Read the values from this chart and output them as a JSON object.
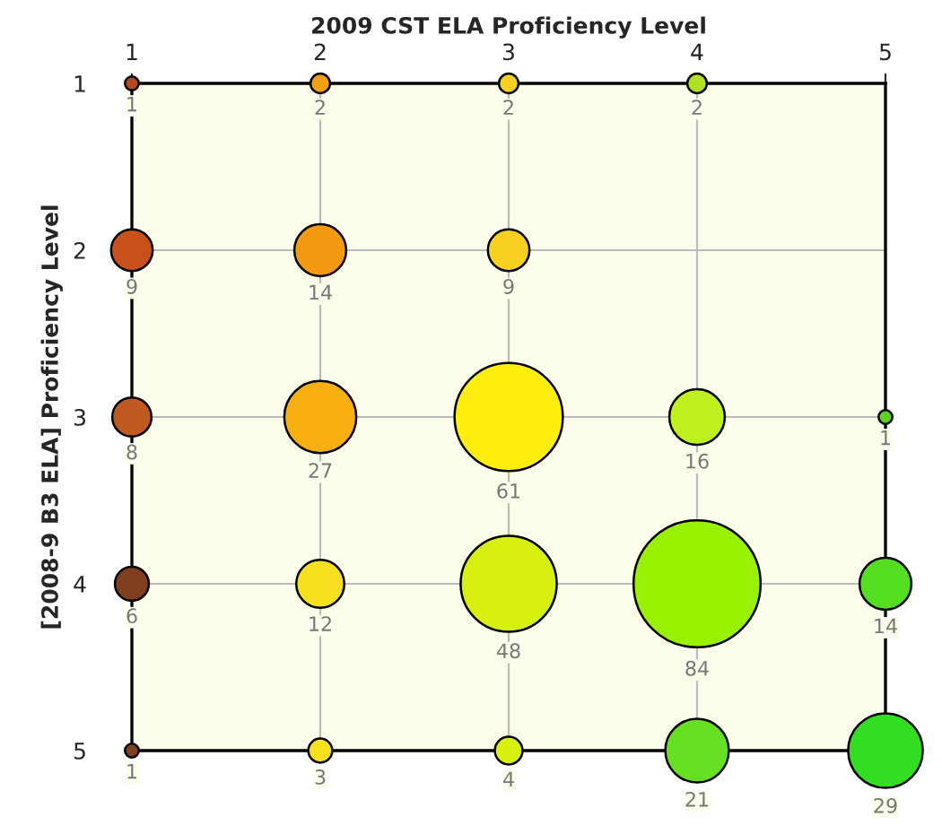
{
  "chart_data": {
    "type": "bubble",
    "title": "2009 CST ELA Proficiency Level",
    "ylabel": "[2008-9 B3 ELA] Proficiency Level",
    "x": [
      1,
      2,
      3,
      4,
      1,
      2,
      3,
      1,
      2,
      3,
      4,
      5,
      1,
      2,
      3,
      4,
      5,
      1,
      2,
      3,
      4,
      5
    ],
    "values": [
      1,
      1,
      1,
      1,
      2,
      2,
      2,
      3,
      3,
      3,
      3,
      3,
      4,
      4,
      4,
      4,
      4,
      5,
      5,
      5,
      5,
      5
    ],
    "sizes": [
      1,
      2,
      2,
      2,
      9,
      14,
      9,
      8,
      27,
      61,
      16,
      1,
      6,
      12,
      48,
      84,
      14,
      1,
      3,
      4,
      21,
      29
    ],
    "value_labels": [
      "1",
      "2",
      "2",
      "2",
      "9",
      "14",
      "9",
      "8",
      "27",
      "61",
      "16",
      "1",
      "6",
      "12",
      "48",
      "84",
      "14",
      "1",
      "3",
      "4",
      "21",
      "29"
    ],
    "colors": [
      "#b04a20",
      "#f0a010",
      "#f8d020",
      "#b0e020",
      "#c8501a",
      "#f59a10",
      "#f8d020",
      "#c05a20",
      "#f8b010",
      "#ffee10",
      "#c0f020",
      "#60d020",
      "#804020",
      "#f8e020",
      "#d8f010",
      "#99f000",
      "#55dd22",
      "#804020",
      "#f8e020",
      "#d8f010",
      "#66e022",
      "#33dd22"
    ],
    "xlim": [
      1,
      5
    ],
    "xticks": [
      1,
      2,
      3,
      4,
      5
    ],
    "ylim": [
      5,
      1
    ],
    "yticks": [
      1,
      2,
      3,
      4,
      5
    ],
    "grid": true
  }
}
